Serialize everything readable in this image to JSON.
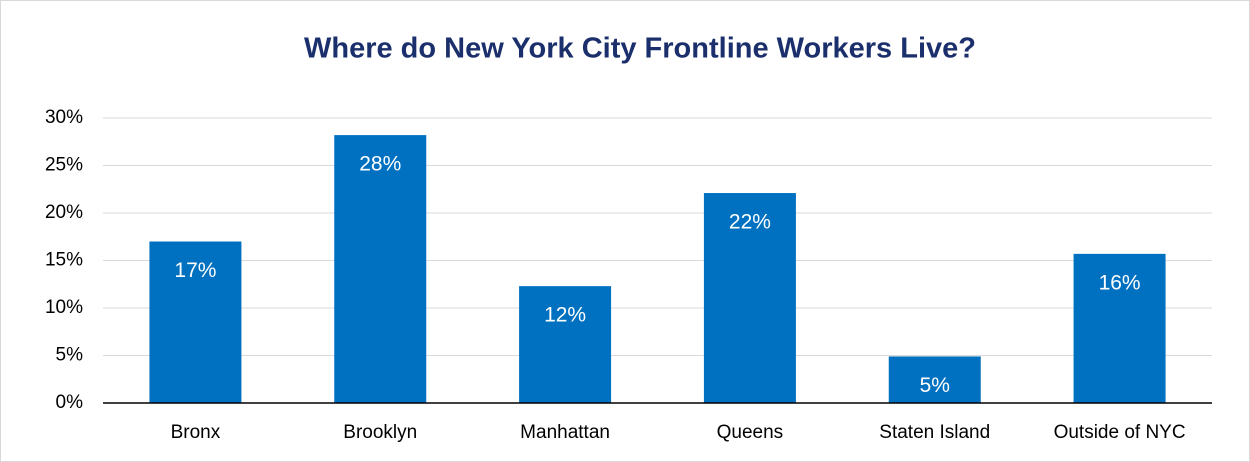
{
  "chart_data": {
    "type": "bar",
    "title": "Where do New York City Frontline Workers Live?",
    "categories": [
      "Bronx",
      "Brooklyn",
      "Manhattan",
      "Queens",
      "Staten Island",
      "Outside of NYC"
    ],
    "values": [
      17,
      28.2,
      12.3,
      22.1,
      4.9,
      15.7
    ],
    "value_labels": [
      "17%",
      "28%",
      "12%",
      "22%",
      "5%",
      "16%"
    ],
    "color": "#0070c0",
    "ylim": [
      0,
      30
    ],
    "yticks": [
      {
        "value": 0,
        "label": "0%"
      },
      {
        "value": 5,
        "label": "5%"
      },
      {
        "value": 10,
        "label": "10%"
      },
      {
        "value": 15,
        "label": "15%"
      },
      {
        "value": 20,
        "label": "20%"
      },
      {
        "value": 25,
        "label": "25%"
      },
      {
        "value": 30,
        "label": "30%"
      }
    ],
    "grid": true
  }
}
